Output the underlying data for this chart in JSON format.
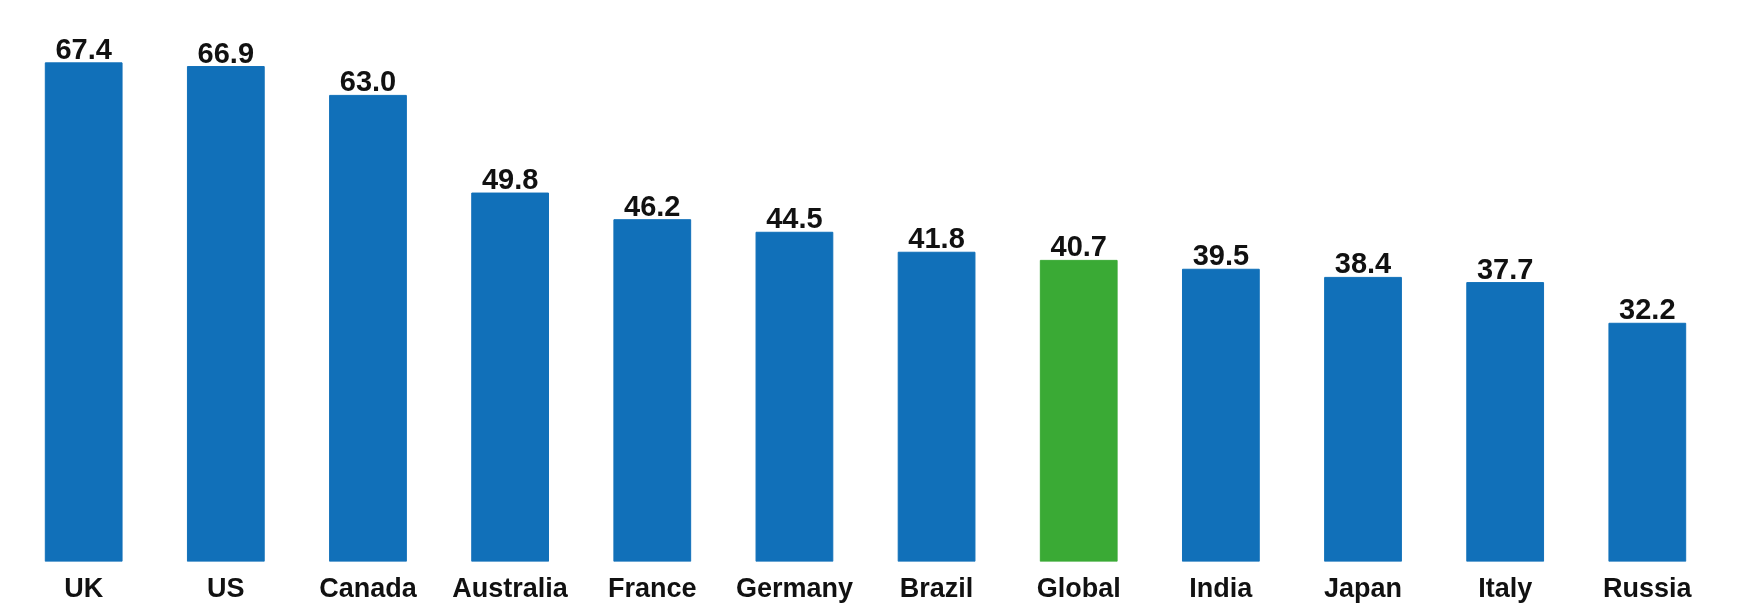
{
  "chart_data": {
    "type": "bar",
    "categories": [
      "UK",
      "US",
      "Canada",
      "Australia",
      "France",
      "Germany",
      "Brazil",
      "Global",
      "India",
      "Japan",
      "Italy",
      "Russia"
    ],
    "values": [
      67.4,
      66.9,
      63.0,
      49.8,
      46.2,
      44.5,
      41.8,
      40.7,
      39.5,
      38.4,
      37.7,
      32.2
    ],
    "colors": [
      "#1170b9",
      "#1170b9",
      "#1170b9",
      "#1170b9",
      "#1170b9",
      "#1170b9",
      "#1170b9",
      "#3aaa35",
      "#1170b9",
      "#1170b9",
      "#1170b9",
      "#1170b9"
    ],
    "value_labels": [
      "67.4",
      "66.9",
      "63.0",
      "49.8",
      "46.2",
      "44.5",
      "41.8",
      "40.7",
      "39.5",
      "38.4",
      "37.7",
      "32.2"
    ],
    "grid": false,
    "tick_labels": "x"
  }
}
